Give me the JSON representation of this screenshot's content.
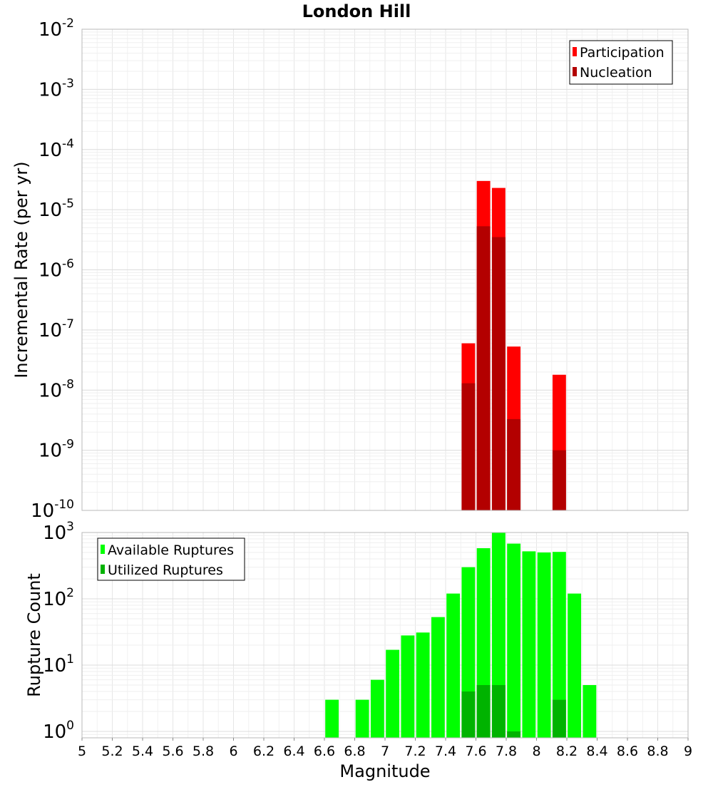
{
  "chart_data": {
    "title": "London Hill",
    "xlabel": "Magnitude",
    "xlim": [
      5,
      9
    ],
    "xticks": [
      "5",
      "5.2",
      "5.4",
      "5.6",
      "5.8",
      "6",
      "6.2",
      "6.4",
      "6.6",
      "6.8",
      "7",
      "7.2",
      "7.4",
      "7.6",
      "7.8",
      "8",
      "8.2",
      "8.4",
      "8.6",
      "8.8",
      "9"
    ],
    "bin_width": 0.1,
    "panels": [
      {
        "type": "bar",
        "yscale": "log",
        "ylabel": "Incremental Rate (per yr)",
        "ylim": [
          1e-10,
          0.01
        ],
        "yticks": [
          {
            "base": "10",
            "exp": "-10",
            "value": 1e-10
          },
          {
            "base": "10",
            "exp": "-9",
            "value": 1e-09
          },
          {
            "base": "10",
            "exp": "-8",
            "value": 1e-08
          },
          {
            "base": "10",
            "exp": "-7",
            "value": 1e-07
          },
          {
            "base": "10",
            "exp": "-6",
            "value": 1e-06
          },
          {
            "base": "10",
            "exp": "-5",
            "value": 1e-05
          },
          {
            "base": "10",
            "exp": "-4",
            "value": 0.0001
          },
          {
            "base": "10",
            "exp": "-3",
            "value": 0.001
          },
          {
            "base": "10",
            "exp": "-2",
            "value": 0.01
          }
        ],
        "grid": true,
        "legend_position": "top-right",
        "series": [
          {
            "name": "Participation",
            "color": "#ff0000",
            "x": [
              7.55,
              7.65,
              7.75,
              7.85,
              8.15
            ],
            "values": [
              6e-08,
              3e-05,
              2.3e-05,
              5.3e-08,
              1.8e-08
            ]
          },
          {
            "name": "Nucleation",
            "color": "#b30000",
            "x": [
              7.55,
              7.65,
              7.75,
              7.85,
              8.15
            ],
            "values": [
              1.3e-08,
              5.3e-06,
              3.5e-06,
              3.3e-09,
              1e-09
            ]
          }
        ]
      },
      {
        "type": "bar",
        "yscale": "log",
        "ylabel": "Rupture Count",
        "ylim": [
          0.8,
          1000
        ],
        "yticks": [
          {
            "base": "10",
            "exp": "0",
            "value": 1
          },
          {
            "base": "10",
            "exp": "1",
            "value": 10
          },
          {
            "base": "10",
            "exp": "2",
            "value": 100
          },
          {
            "base": "10",
            "exp": "3",
            "value": 1000
          }
        ],
        "grid": true,
        "legend_position": "top-left",
        "series": [
          {
            "name": "Available Ruptures",
            "color": "#00ff00",
            "x": [
              6.65,
              6.85,
              6.95,
              7.05,
              7.15,
              7.25,
              7.35,
              7.45,
              7.55,
              7.65,
              7.75,
              7.85,
              7.95,
              8.05,
              8.15,
              8.25,
              8.35
            ],
            "values": [
              3,
              3,
              6,
              17,
              28,
              31,
              53,
              120,
              300,
              580,
              1000,
              680,
              520,
              500,
              510,
              120,
              5
            ]
          },
          {
            "name": "Utilized Ruptures",
            "color": "#00b300",
            "x": [
              7.55,
              7.65,
              7.75,
              7.85,
              8.15
            ],
            "values": [
              4,
              5,
              5,
              1,
              3
            ]
          }
        ]
      }
    ]
  }
}
